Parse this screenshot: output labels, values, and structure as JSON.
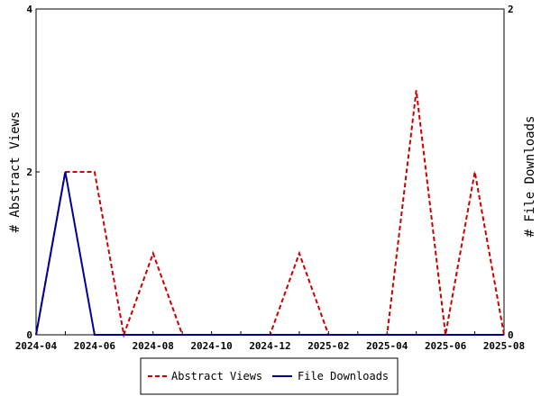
{
  "chart_data": {
    "type": "line",
    "x": [
      "2024-04",
      "2024-05",
      "2024-06",
      "2024-07",
      "2024-08",
      "2024-09",
      "2024-10",
      "2024-11",
      "2024-12",
      "2025-01",
      "2025-02",
      "2025-03",
      "2025-04",
      "2025-05",
      "2025-06",
      "2025-07",
      "2025-08"
    ],
    "x_tick_labels": [
      "2024-04",
      "2024-06",
      "2024-08",
      "2024-10",
      "2024-12",
      "2025-02",
      "2025-04",
      "2025-06",
      "2025-08"
    ],
    "series": [
      {
        "name": "Abstract Views",
        "axis": "left",
        "color": "#cc0000",
        "dash": "dashed",
        "values": [
          0,
          2,
          2,
          0,
          1,
          0,
          0,
          0,
          0,
          1,
          0,
          0,
          0,
          3,
          0,
          2,
          0
        ]
      },
      {
        "name": "File Downloads",
        "axis": "right",
        "color": "#000099",
        "dash": "solid",
        "values": [
          0,
          1,
          0,
          0,
          0,
          0,
          0,
          0,
          0,
          0,
          0,
          0,
          0,
          0,
          0,
          0,
          0
        ]
      }
    ],
    "ylabel_left": "# Abstract Views",
    "ylabel_right": "# File Downloads",
    "ylim_left": [
      0,
      4
    ],
    "ylim_right": [
      0,
      2
    ],
    "yticks_left": [
      "0",
      "2",
      "4"
    ],
    "yticks_right": [
      "0",
      "2"
    ],
    "grid": false,
    "legend_position": "bottom-center"
  }
}
